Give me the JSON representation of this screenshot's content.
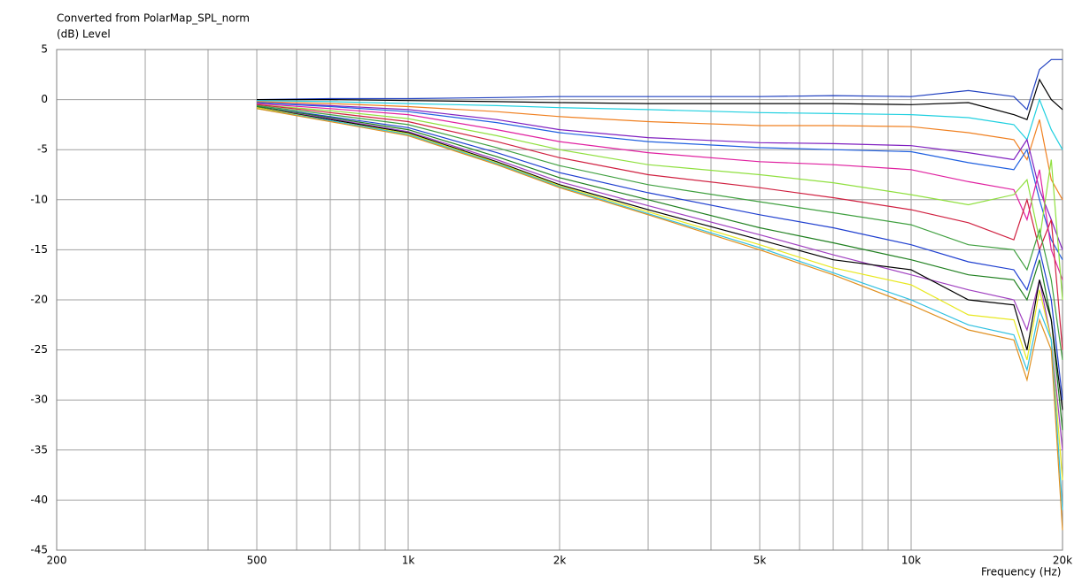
{
  "chart_data": {
    "type": "line",
    "title": "Converted from PolarMap_SPL_norm",
    "y_label": "(dB)  Level",
    "x_label": "Frequency (Hz)",
    "x_scale": "log",
    "xlim": [
      200,
      20000
    ],
    "ylim": [
      -45,
      5
    ],
    "xticks": [
      200,
      500,
      {
        "value": 1000,
        "label": "1k"
      },
      {
        "value": 2000,
        "label": "2k"
      },
      {
        "value": 5000,
        "label": "5k"
      },
      {
        "value": 10000,
        "label": "10k"
      },
      {
        "value": 20000,
        "label": "20k"
      }
    ],
    "xminorticks": [
      300,
      400,
      600,
      700,
      800,
      900,
      3000,
      4000,
      6000,
      7000,
      8000,
      9000
    ],
    "yticks": [
      5,
      0,
      -5,
      -10,
      -15,
      -20,
      -25,
      -30,
      -35,
      -40,
      -45
    ],
    "grid": true,
    "x": [
      500,
      700,
      1000,
      1500,
      2000,
      3000,
      5000,
      7000,
      10000,
      13000,
      16000,
      17000,
      18000,
      19000,
      20000
    ],
    "series": [
      {
        "color": "#2040c0",
        "values": [
          0,
          0.1,
          0.1,
          0.2,
          0.3,
          0.3,
          0.3,
          0.4,
          0.3,
          0.9,
          0.3,
          -1,
          3,
          4,
          4
        ]
      },
      {
        "color": "#000000",
        "values": [
          0,
          0,
          -0.1,
          -0.2,
          -0.3,
          -0.4,
          -0.4,
          -0.4,
          -0.5,
          -0.3,
          -1.5,
          -2,
          2,
          0,
          -1
        ]
      },
      {
        "color": "#20d0e0",
        "values": [
          -0.1,
          -0.2,
          -0.4,
          -0.6,
          -0.8,
          -1,
          -1.3,
          -1.4,
          -1.5,
          -1.8,
          -2.5,
          -4,
          0,
          -3,
          -5
        ]
      },
      {
        "color": "#f08020",
        "values": [
          -0.2,
          -0.4,
          -0.7,
          -1.2,
          -1.7,
          -2.2,
          -2.6,
          -2.6,
          -2.7,
          -3.3,
          -4,
          -6,
          -2,
          -8,
          -10
        ]
      },
      {
        "color": "#8020c0",
        "values": [
          -0.3,
          -0.6,
          -1,
          -2,
          -3,
          -3.8,
          -4.3,
          -4.4,
          -4.6,
          -5.3,
          -6,
          -4,
          -9,
          -12,
          -15
        ]
      },
      {
        "color": "#2060e0",
        "values": [
          -0.3,
          -0.7,
          -1.2,
          -2.3,
          -3.3,
          -4.2,
          -4.8,
          -5,
          -5.2,
          -6.3,
          -7,
          -5,
          -10,
          -14,
          -16
        ]
      },
      {
        "color": "#e020a0",
        "values": [
          -0.4,
          -0.9,
          -1.5,
          -3,
          -4.2,
          -5.3,
          -6.2,
          -6.5,
          -7,
          -8.2,
          -9,
          -12,
          -7,
          -15,
          -18
        ]
      },
      {
        "color": "#90e040",
        "values": [
          -0.5,
          -1.1,
          -1.9,
          -3.6,
          -5,
          -6.5,
          -7.5,
          -8.3,
          -9.5,
          -10.5,
          -9.5,
          -8,
          -14,
          -6,
          -20
        ]
      },
      {
        "color": "#d02040",
        "values": [
          -0.5,
          -1.3,
          -2.2,
          -4.2,
          -5.8,
          -7.5,
          -8.8,
          -9.8,
          -11,
          -12.3,
          -14,
          -10,
          -15,
          -12,
          -25
        ]
      },
      {
        "color": "#40a040",
        "values": [
          -0.6,
          -1.5,
          -2.5,
          -4.8,
          -6.6,
          -8.5,
          -10.2,
          -11.3,
          -12.5,
          -14.5,
          -15,
          -17,
          -13,
          -18,
          -26
        ]
      },
      {
        "color": "#2040d0",
        "values": [
          -0.7,
          -1.7,
          -2.8,
          -5.3,
          -7.3,
          -9.3,
          -11.5,
          -12.8,
          -14.5,
          -16.2,
          -17,
          -19,
          -15,
          -20,
          -30
        ]
      },
      {
        "color": "#208020",
        "values": [
          -0.7,
          -1.8,
          -3,
          -5.7,
          -7.8,
          -10,
          -12.8,
          -14.3,
          -16,
          -17.5,
          -18,
          -20,
          -16,
          -22,
          -33
        ]
      },
      {
        "color": "#a040c0",
        "values": [
          -0.8,
          -1.9,
          -3.2,
          -6,
          -8.2,
          -10.6,
          -13.5,
          -15.5,
          -17.5,
          -19,
          -20,
          -23,
          -18,
          -24,
          -35
        ]
      },
      {
        "color": "#000000",
        "values": [
          -0.8,
          -2,
          -3.3,
          -6.2,
          -8.5,
          -11,
          -14,
          -16,
          -17,
          -20,
          -20.5,
          -25,
          -18,
          -22,
          -31
        ]
      },
      {
        "color": "#e8e820",
        "values": [
          -0.8,
          -2.1,
          -3.4,
          -6.3,
          -8.6,
          -11.2,
          -14.5,
          -16.8,
          -18.5,
          -21.5,
          -22,
          -26,
          -19,
          -24,
          -38
        ]
      },
      {
        "color": "#30c0e0",
        "values": [
          -0.9,
          -2.1,
          -3.5,
          -6.4,
          -8.7,
          -11.4,
          -14.8,
          -17.3,
          -20,
          -22.5,
          -23.5,
          -27,
          -21,
          -24,
          -41
        ]
      },
      {
        "color": "#e09020",
        "values": [
          -0.9,
          -2.2,
          -3.6,
          -6.5,
          -8.8,
          -11.5,
          -15,
          -17.5,
          -20.5,
          -23,
          -24,
          -28,
          -22,
          -25,
          -43
        ]
      }
    ]
  }
}
